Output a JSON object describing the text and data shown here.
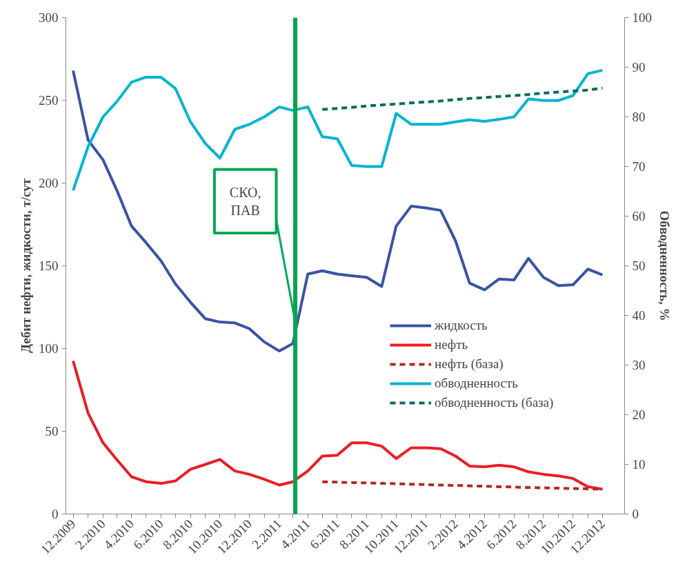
{
  "chart_data": {
    "type": "line",
    "ylabel": "Дебит нефти, жидкости, т/сут",
    "y2label": "Обводненность, %",
    "x": [
      "2009-12",
      "2010-01",
      "2010-02",
      "2010-03",
      "2010-04",
      "2010-05",
      "2010-06",
      "2010-07",
      "2010-08",
      "2010-09",
      "2010-10",
      "2010-11",
      "2010-12",
      "2011-01",
      "2011-02",
      "2011-03",
      "2011-04",
      "2011-05",
      "2011-06",
      "2011-07",
      "2011-08",
      "2011-09",
      "2011-10",
      "2011-11",
      "2011-12",
      "2012-01",
      "2012-02",
      "2012-03",
      "2012-04",
      "2012-05",
      "2012-06",
      "2012-07",
      "2012-08",
      "2012-09",
      "2012-10",
      "2012-11",
      "2012-12"
    ],
    "xlim": [
      "2009-11-16",
      "2013-01-16"
    ],
    "xticks": [
      {
        "value": "2009-12",
        "label": "12.2009"
      },
      {
        "value": "2010-01",
        "label": null
      },
      {
        "value": "2010-02",
        "label": "2.2010"
      },
      {
        "value": "2010-03",
        "label": null
      },
      {
        "value": "2010-04",
        "label": "4.2010"
      },
      {
        "value": "2010-05",
        "label": null
      },
      {
        "value": "2010-06",
        "label": "6.2010"
      },
      {
        "value": "2010-07",
        "label": null
      },
      {
        "value": "2010-08",
        "label": "8.2010"
      },
      {
        "value": "2010-09",
        "label": null
      },
      {
        "value": "2010-10",
        "label": "10.2010"
      },
      {
        "value": "2010-11",
        "label": null
      },
      {
        "value": "2010-12",
        "label": "12.2010"
      },
      {
        "value": "2011-01",
        "label": null
      },
      {
        "value": "2011-02",
        "label": "2.2011"
      },
      {
        "value": "2011-03",
        "label": null
      },
      {
        "value": "2011-04",
        "label": "4.2011"
      },
      {
        "value": "2011-05",
        "label": null
      },
      {
        "value": "2011-06",
        "label": "6.2011"
      },
      {
        "value": "2011-07",
        "label": null
      },
      {
        "value": "2011-08",
        "label": "8.2011"
      },
      {
        "value": "2011-09",
        "label": null
      },
      {
        "value": "2011-10",
        "label": "10.2011"
      },
      {
        "value": "2011-11",
        "label": null
      },
      {
        "value": "2011-12",
        "label": "12.2011"
      },
      {
        "value": "2012-01",
        "label": null
      },
      {
        "value": "2012-02",
        "label": "2.2012"
      },
      {
        "value": "2012-03",
        "label": null
      },
      {
        "value": "2012-04",
        "label": "4.2012"
      },
      {
        "value": "2012-05",
        "label": null
      },
      {
        "value": "2012-06",
        "label": "6.2012"
      },
      {
        "value": "2012-07",
        "label": null
      },
      {
        "value": "2012-08",
        "label": "8.2012"
      },
      {
        "value": "2012-09",
        "label": null
      },
      {
        "value": "2012-10",
        "label": "10.2012"
      },
      {
        "value": "2012-11",
        "label": null
      },
      {
        "value": "2012-12",
        "label": "12.2012"
      }
    ],
    "ylim": [
      0,
      300
    ],
    "yticks": [
      0,
      50,
      100,
      150,
      200,
      250,
      300
    ],
    "y2lim": [
      0,
      100
    ],
    "y2ticks": [
      0,
      10,
      20,
      30,
      40,
      50,
      60,
      70,
      80,
      90,
      100
    ],
    "series": [
      {
        "name": "жидкость",
        "color": "#3953a4",
        "line_style": "solid",
        "values": [
          268,
          226,
          214,
          196,
          174,
          164,
          153,
          139,
          128,
          118,
          116,
          115.5,
          112,
          104,
          98.5,
          103,
          145,
          147,
          145,
          144,
          143,
          137.5,
          174,
          186,
          185,
          183.5,
          165,
          139.5,
          135.5,
          142,
          141.5,
          154.5,
          143,
          138,
          138.5,
          148,
          144.5
        ]
      },
      {
        "name": "нефть",
        "color": "#ed1c24",
        "line_style": "solid",
        "values": [
          92.5,
          61,
          43,
          33,
          22.5,
          19.5,
          18.5,
          20,
          27,
          30,
          33,
          26,
          24,
          21,
          17.5,
          19.5,
          26,
          35,
          35.5,
          43,
          43,
          41,
          33.5,
          40,
          40,
          39.5,
          35,
          29,
          28.5,
          29.5,
          28.5,
          25.5,
          24,
          23,
          21.5,
          16.5,
          15
        ]
      },
      {
        "name": "нефть (база)",
        "color": "#b22a24",
        "line_style": "dashed",
        "values": [
          null,
          null,
          null,
          null,
          null,
          null,
          null,
          null,
          null,
          null,
          null,
          null,
          null,
          null,
          null,
          null,
          null,
          19.5,
          19.3,
          19,
          18.8,
          18.5,
          18.3,
          18,
          17.8,
          17.5,
          17.3,
          17,
          16.8,
          16.5,
          16.3,
          16,
          15.8,
          15.6,
          15.4,
          15.2,
          15
        ]
      },
      {
        "name": "обводненность",
        "color": "#00b5d0",
        "line_style": "solid",
        "axis": "y2",
        "values": [
          65.2,
          74,
          80,
          83,
          87,
          88,
          88,
          85.7,
          79,
          74.6,
          71.7,
          77.5,
          78.5,
          80,
          82,
          81.3,
          82,
          76,
          75.6,
          70.2,
          70,
          70,
          80.7,
          78.5,
          78.5,
          78.5,
          79,
          79.4,
          79.1,
          79.5,
          80,
          83.6,
          83.3,
          83.3,
          84.3,
          88.7,
          89.4
        ]
      },
      {
        "name": "обводненность (база)",
        "color": "#006b63",
        "line_style": "dashed",
        "axis": "y2",
        "values": [
          null,
          null,
          null,
          null,
          null,
          null,
          null,
          null,
          null,
          null,
          null,
          null,
          null,
          null,
          null,
          null,
          null,
          81.5,
          81.7,
          81.9,
          82.2,
          82.4,
          82.6,
          82.8,
          83,
          83.2,
          83.5,
          83.7,
          83.9,
          84.1,
          84.3,
          84.5,
          84.8,
          85,
          85.2,
          85.4,
          85.8
        ]
      }
    ],
    "ref_lines": [
      {
        "axis": "x",
        "value": "2011-03-06",
        "color": "#00a651",
        "line_style": "solid"
      }
    ],
    "annotations": [
      {
        "text": "СКО,\nПАВ",
        "x": "2011-03-06",
        "y": 116
      }
    ],
    "legend": "right",
    "grid": false
  }
}
